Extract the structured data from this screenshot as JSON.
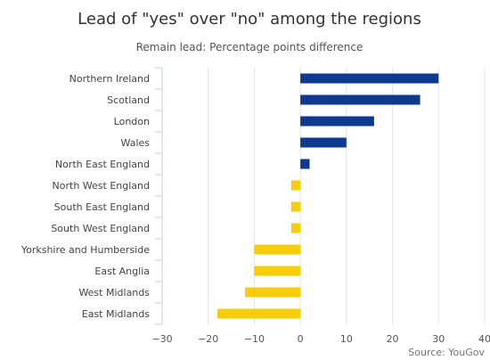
{
  "chart_data": {
    "type": "bar",
    "orientation": "horizontal",
    "title": "Lead of \"yes\" over \"no\" among the regions",
    "subtitle": "Remain lead: Percentage points difference",
    "credit": "Source: YouGov",
    "categories": [
      "Northern Ireland",
      "Scotland",
      "London",
      "Wales",
      "North East England",
      "North West England",
      "South East England",
      "South West England",
      "Yorkshire and Humberside",
      "East Anglia",
      "West Midlands",
      "East Midlands"
    ],
    "values": [
      30,
      26,
      16,
      10,
      2,
      -2,
      -2,
      -2,
      -10,
      -10,
      -12,
      -18
    ],
    "xlim": [
      -30,
      40
    ],
    "xticks": [
      -30,
      -20,
      -10,
      0,
      10,
      20,
      30,
      40
    ],
    "grid": true,
    "colors": {
      "positive": "#0d3a8f",
      "negative": "#f7cc0a"
    }
  }
}
